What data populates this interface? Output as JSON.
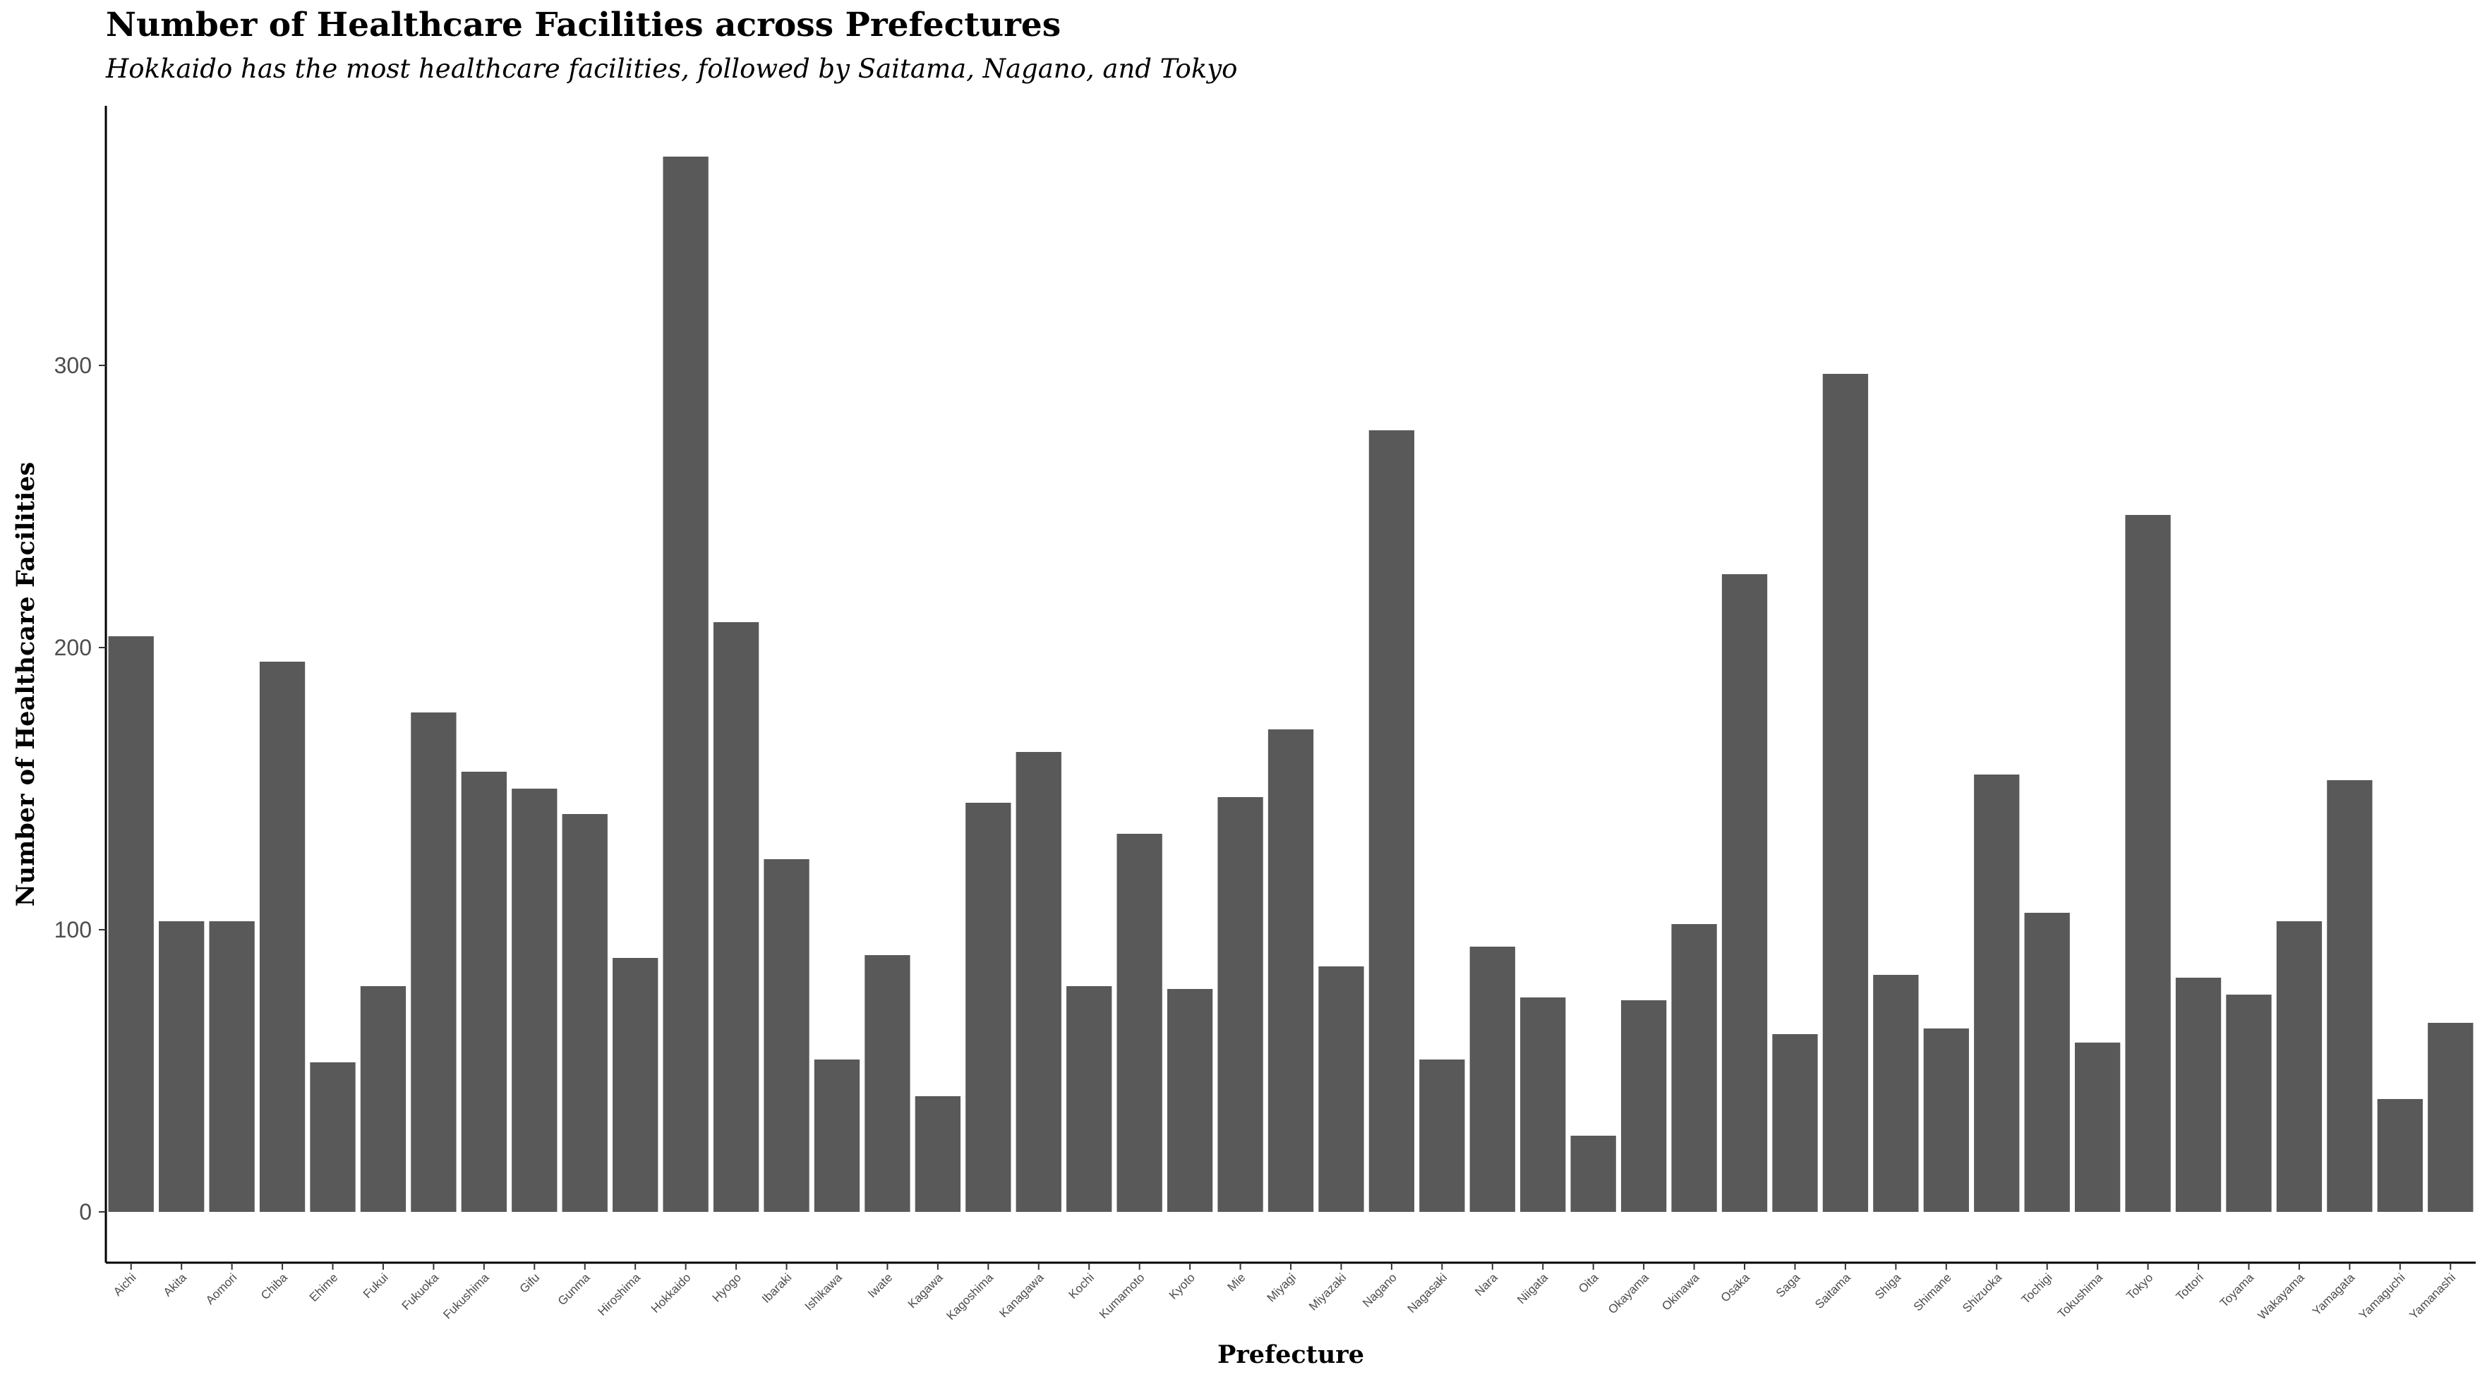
{
  "chart_data": {
    "type": "bar",
    "title": "Number of Healthcare Facilities across Prefectures",
    "subtitle": "Hokkaido has the most healthcare facilities, followed by Saitama, Nagano, and Tokyo",
    "xlabel": "Prefecture",
    "ylabel": "Number of Healthcare Facilities",
    "ylim": [
      -18,
      392
    ],
    "yticks": [
      0,
      100,
      200,
      300
    ],
    "grid": false,
    "bar_color": "#595959",
    "categories": [
      "Aichi",
      "Akita",
      "Aomori",
      "Chiba",
      "Ehime",
      "Fukui",
      "Fukuoka",
      "Fukushima",
      "Gifu",
      "Gunma",
      "Hiroshima",
      "Hokkaido",
      "Hyogo",
      "Ibaraki",
      "Ishikawa",
      "Iwate",
      "Kagawa",
      "Kagoshima",
      "Kanagawa",
      "Kochi",
      "Kumamoto",
      "Kyoto",
      "Mie",
      "Miyagi",
      "Miyazaki",
      "Nagano",
      "Nagasaki",
      "Nara",
      "Niigata",
      "Oita",
      "Okayama",
      "Okinawa",
      "Osaka",
      "Saga",
      "Saitama",
      "Shiga",
      "Shimane",
      "Shizuoka",
      "Tochigi",
      "Tokushima",
      "Tokyo",
      "Tottori",
      "Toyama",
      "Wakayama",
      "Yamagata",
      "Yamaguchi",
      "Yamanashi"
    ],
    "values": [
      204,
      103,
      103,
      195,
      53,
      80,
      177,
      156,
      150,
      141,
      90,
      374,
      209,
      125,
      54,
      91,
      41,
      145,
      163,
      80,
      134,
      79,
      147,
      171,
      87,
      277,
      54,
      94,
      76,
      27,
      75,
      102,
      226,
      63,
      297,
      84,
      65,
      155,
      106,
      60,
      247,
      83,
      77,
      103,
      153,
      40,
      67
    ]
  }
}
